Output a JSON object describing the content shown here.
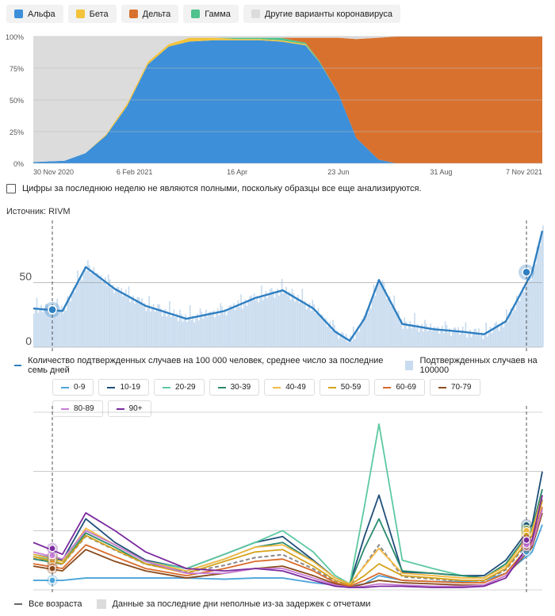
{
  "variant_chart": {
    "legend": [
      {
        "label": "Альфа",
        "color": "#3d8fd9"
      },
      {
        "label": "Бета",
        "color": "#f3c33c"
      },
      {
        "label": "Дельта",
        "color": "#d9712e"
      },
      {
        "label": "Гамма",
        "color": "#4fc28d"
      },
      {
        "label": "Другие варианты коронавируса",
        "color": "#dcdcdc"
      }
    ],
    "y_ticks": [
      "0%",
      "25%",
      "50%",
      "75%",
      "100%"
    ],
    "x_ticks": [
      "30 Nov 2020",
      "6 Feb 2021",
      "16 Apr",
      "23 Jun",
      "31 Aug",
      "7 Nov 2021"
    ],
    "note": "Цифры за последнюю неделю не являются полными, поскольку образцы все еще анализируются."
  },
  "source": "Источник: RIVM",
  "cases_chart": {
    "y_ticks": [
      "0",
      "50"
    ],
    "legend_line": "Количество подтвержденных случаев на 100 000 человек, среднее число за последние семь дней",
    "legend_bars": "Подтвержденных случаев на 100000"
  },
  "age_chart": {
    "groups": [
      {
        "label": "0-9",
        "color": "#4aa3d8"
      },
      {
        "label": "10-19",
        "color": "#1f4e79"
      },
      {
        "label": "20-29",
        "color": "#5bc9a0"
      },
      {
        "label": "30-39",
        "color": "#2b8a6e"
      },
      {
        "label": "40-49",
        "color": "#f5b942"
      },
      {
        "label": "50-59",
        "color": "#d6a21a"
      },
      {
        "label": "60-69",
        "color": "#d96b2b"
      },
      {
        "label": "70-79",
        "color": "#8a4a1c"
      },
      {
        "label": "80-89",
        "color": "#c77dd6"
      },
      {
        "label": "90+",
        "color": "#7b2b9e"
      }
    ],
    "legend_all": "Все возраста",
    "legend_incomplete": "Данные за последние дни неполные из-за задержек с отчетами"
  },
  "chart_data": [
    {
      "type": "area",
      "stacked": true,
      "ylim": [
        0,
        100
      ],
      "x": [
        "2020-11-30",
        "2020-12-21",
        "2021-01-04",
        "2021-01-18",
        "2021-02-01",
        "2021-02-15",
        "2021-03-01",
        "2021-03-15",
        "2021-04-01",
        "2021-04-16",
        "2021-05-01",
        "2021-05-15",
        "2021-06-01",
        "2021-06-10",
        "2021-06-23",
        "2021-07-05",
        "2021-07-20",
        "2021-08-01",
        "2021-08-31",
        "2021-10-01",
        "2021-11-07"
      ],
      "series": [
        {
          "name": "Альфа",
          "values": [
            1,
            2,
            8,
            22,
            45,
            78,
            92,
            96,
            97,
            97,
            97,
            96,
            93,
            80,
            55,
            20,
            3,
            0,
            0,
            0,
            0
          ]
        },
        {
          "name": "Бета",
          "values": [
            0,
            0,
            0,
            1,
            2,
            2,
            2,
            3,
            2,
            1,
            1,
            1,
            1,
            0,
            0,
            0,
            0,
            0,
            0,
            0,
            0
          ]
        },
        {
          "name": "Гамма",
          "values": [
            0,
            0,
            0,
            0,
            0,
            0,
            0,
            0,
            0,
            1,
            1,
            2,
            1,
            1,
            0,
            0,
            0,
            0,
            0,
            0,
            0
          ]
        },
        {
          "name": "Дельта",
          "values": [
            0,
            0,
            0,
            0,
            0,
            0,
            0,
            0,
            0,
            0,
            0,
            0,
            4,
            18,
            44,
            78,
            96,
            100,
            100,
            100,
            100
          ]
        },
        {
          "name": "Другие варианты коронавируса",
          "values": [
            99,
            98,
            92,
            77,
            53,
            20,
            6,
            1,
            1,
            1,
            1,
            1,
            1,
            1,
            1,
            2,
            1,
            0,
            0,
            0,
            0
          ]
        }
      ]
    },
    {
      "type": "line",
      "ylim": [
        0,
        100
      ],
      "x": [
        "2020-11-30",
        "2020-12-20",
        "2021-01-05",
        "2021-01-25",
        "2021-02-15",
        "2021-03-15",
        "2021-04-10",
        "2021-05-01",
        "2021-05-20",
        "2021-06-10",
        "2021-06-25",
        "2021-07-05",
        "2021-07-15",
        "2021-07-25",
        "2021-08-10",
        "2021-08-31",
        "2021-09-20",
        "2021-10-05",
        "2021-10-20",
        "2021-11-07",
        "2021-11-14"
      ],
      "series": [
        {
          "name": "Количество подтвержденных случаев на 100 000 человек, среднее число за последние семь дней",
          "values": [
            30,
            28,
            62,
            45,
            32,
            22,
            28,
            38,
            44,
            30,
            12,
            5,
            22,
            52,
            18,
            14,
            12,
            10,
            20,
            58,
            90
          ]
        }
      ]
    },
    {
      "type": "line",
      "x": [
        "2020-11-30",
        "2020-12-20",
        "2021-01-05",
        "2021-01-25",
        "2021-02-15",
        "2021-03-15",
        "2021-04-10",
        "2021-05-01",
        "2021-05-20",
        "2021-06-10",
        "2021-06-25",
        "2021-07-05",
        "2021-07-15",
        "2021-07-25",
        "2021-08-10",
        "2021-08-31",
        "2021-09-20",
        "2021-10-05",
        "2021-10-20",
        "2021-11-07",
        "2021-11-14"
      ],
      "series": [
        {
          "name": "0-9",
          "values": [
            8,
            8,
            10,
            10,
            10,
            10,
            9,
            10,
            10,
            6,
            4,
            3,
            5,
            12,
            8,
            7,
            7,
            8,
            14,
            32,
            55
          ]
        },
        {
          "name": "10-19",
          "values": [
            30,
            25,
            60,
            40,
            25,
            18,
            30,
            40,
            45,
            25,
            10,
            5,
            45,
            80,
            15,
            14,
            12,
            12,
            25,
            55,
            100
          ]
        },
        {
          "name": "20-29",
          "values": [
            28,
            24,
            50,
            38,
            24,
            18,
            30,
            40,
            50,
            32,
            12,
            5,
            70,
            140,
            25,
            18,
            12,
            10,
            22,
            50,
            85
          ]
        },
        {
          "name": "30-39",
          "values": [
            26,
            22,
            48,
            36,
            22,
            16,
            26,
            36,
            40,
            24,
            10,
            5,
            35,
            60,
            16,
            14,
            12,
            10,
            22,
            52,
            85
          ]
        },
        {
          "name": "40-49",
          "values": [
            30,
            24,
            52,
            38,
            24,
            16,
            26,
            36,
            38,
            24,
            10,
            5,
            20,
            35,
            14,
            12,
            10,
            10,
            20,
            50,
            80
          ]
        },
        {
          "name": "50-59",
          "values": [
            28,
            22,
            46,
            34,
            22,
            14,
            24,
            32,
            34,
            20,
            8,
            4,
            12,
            22,
            12,
            10,
            8,
            8,
            18,
            46,
            75
          ]
        },
        {
          "name": "60-69",
          "values": [
            22,
            18,
            38,
            28,
            18,
            12,
            18,
            24,
            26,
            16,
            6,
            3,
            8,
            14,
            8,
            7,
            6,
            6,
            14,
            40,
            70
          ]
        },
        {
          "name": "70-79",
          "values": [
            20,
            16,
            34,
            24,
            16,
            10,
            14,
            18,
            20,
            12,
            5,
            2,
            5,
            8,
            6,
            5,
            4,
            4,
            12,
            36,
            65
          ]
        },
        {
          "name": "80-89",
          "values": [
            32,
            26,
            50,
            38,
            24,
            14,
            14,
            18,
            18,
            10,
            4,
            2,
            3,
            5,
            4,
            3,
            3,
            4,
            12,
            38,
            68
          ]
        },
        {
          "name": "90+",
          "values": [
            40,
            30,
            65,
            50,
            32,
            18,
            16,
            18,
            16,
            8,
            3,
            2,
            2,
            3,
            3,
            2,
            2,
            3,
            10,
            42,
            80
          ]
        }
      ]
    }
  ]
}
